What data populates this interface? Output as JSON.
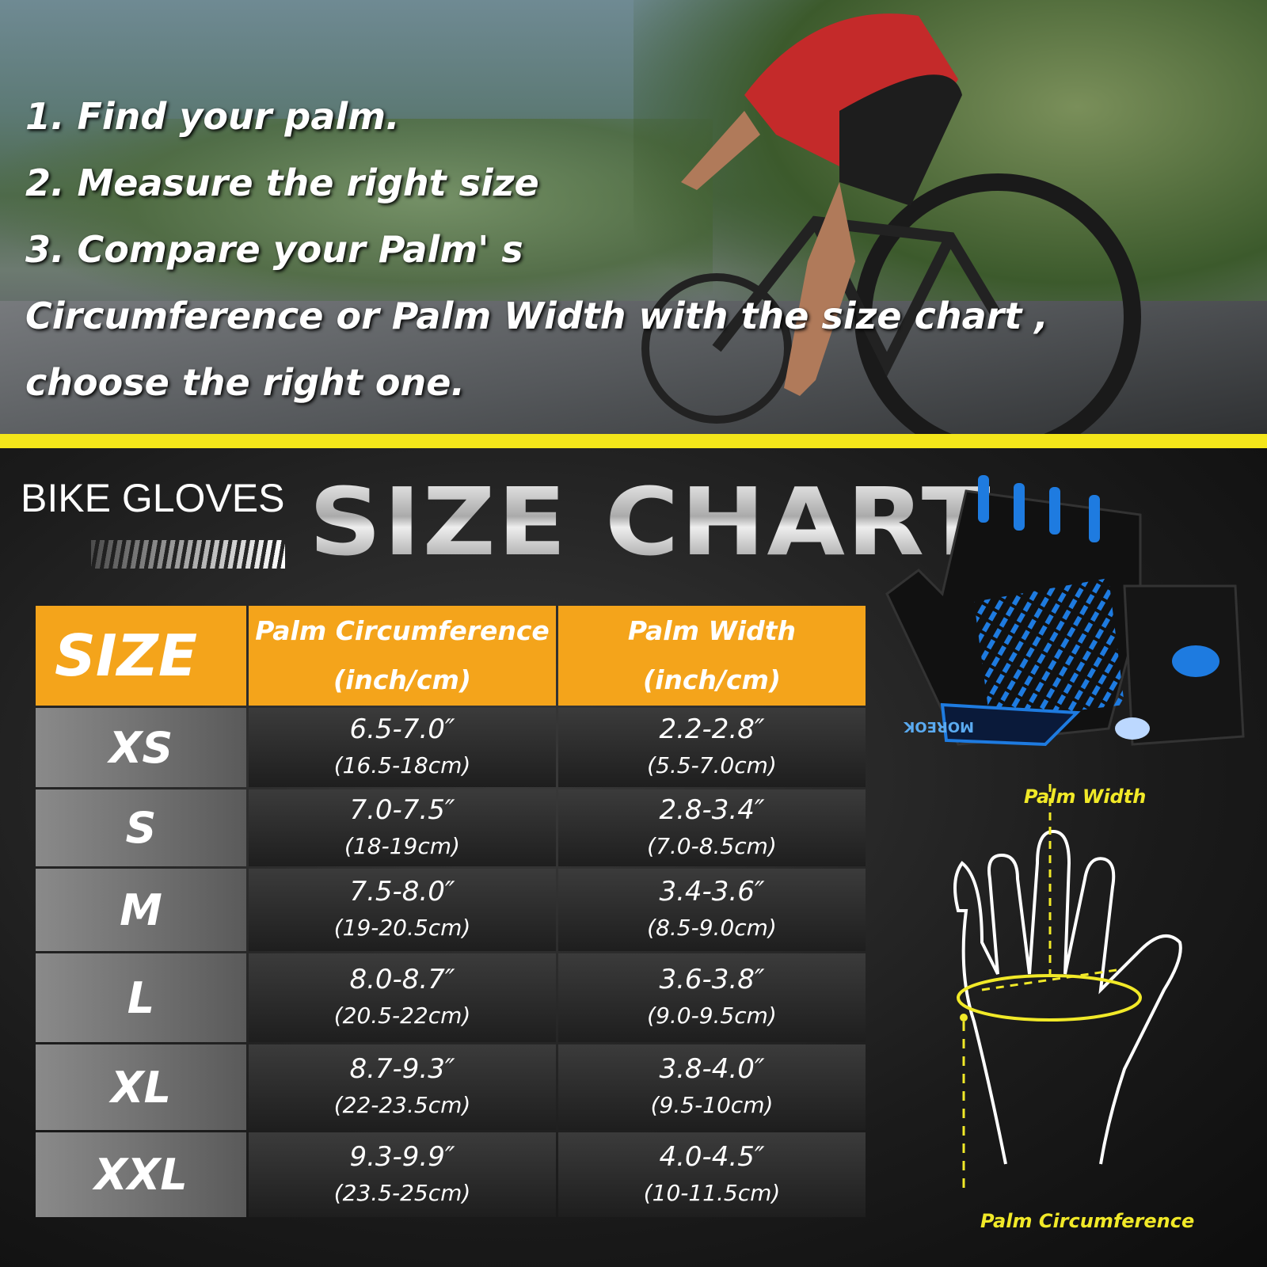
{
  "instructions": [
    "1. Find your palm.",
    "2. Measure the right size",
    "3. Compare your Palm' s",
    "Circumference or Palm Width with the size chart ,",
    "choose the right one."
  ],
  "header": {
    "subtitle": "BIKE GLOVES",
    "title": "SIZE CHART"
  },
  "table": {
    "columns": [
      "SIZE",
      "Palm Circumference",
      "Palm Width"
    ],
    "column_units": [
      "",
      "(inch/cm)",
      "(inch/cm)"
    ],
    "rows": [
      {
        "size": "XS",
        "circ_in": "6.5-7.0″",
        "circ_cm": "(16.5-18cm)",
        "width_in": "2.2-2.8″",
        "width_cm": "(5.5-7.0cm)"
      },
      {
        "size": "S",
        "circ_in": "7.0-7.5″",
        "circ_cm": "(18-19cm)",
        "width_in": "2.8-3.4″",
        "width_cm": "(7.0-8.5cm)"
      },
      {
        "size": "M",
        "circ_in": "7.5-8.0″",
        "circ_cm": "(19-20.5cm)",
        "width_in": "3.4-3.6″",
        "width_cm": "(8.5-9.0cm)"
      },
      {
        "size": "L",
        "circ_in": "8.0-8.7″",
        "circ_cm": "(20.5-22cm)",
        "width_in": "3.6-3.8″",
        "width_cm": "(9.0-9.5cm)"
      },
      {
        "size": "XL",
        "circ_in": "8.7-9.3″",
        "circ_cm": "(22-23.5cm)",
        "width_in": "3.8-4.0″",
        "width_cm": "(9.5-10cm)"
      },
      {
        "size": "XXL",
        "circ_in": "9.3-9.9″",
        "circ_cm": "(23.5-25cm)",
        "width_in": "4.0-4.5″",
        "width_cm": "(10-11.5cm)"
      }
    ]
  },
  "diagram": {
    "palm_width_label": "Palm Width",
    "palm_circumference_label": "Palm Circumference"
  },
  "glove": {
    "brand": "MOREOK"
  },
  "colors": {
    "accent_yellow": "#f4e61a",
    "header_orange": "#f4a41b",
    "glove_blue": "#1e7be0",
    "label_yellow": "#f1e928"
  }
}
